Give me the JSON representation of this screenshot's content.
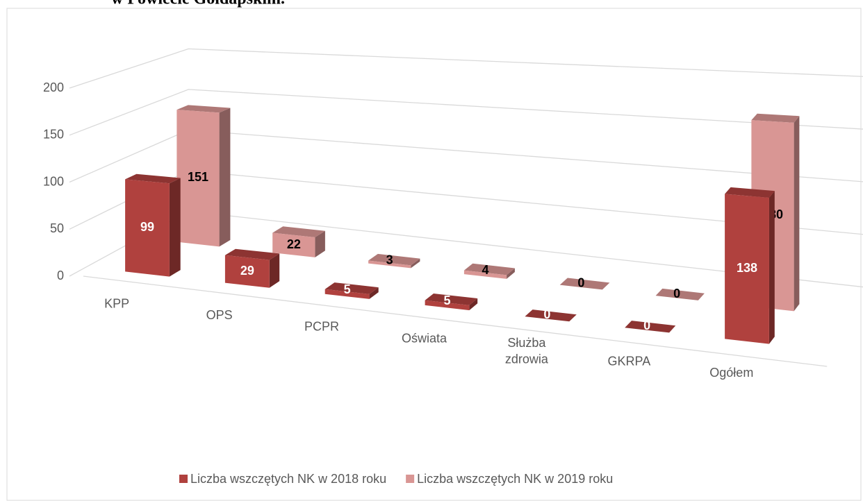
{
  "chart_data": {
    "type": "bar3d",
    "title": "w Powiecie Gołdapskim.",
    "categories": [
      "KPP",
      "OPS",
      "PCPR",
      "Oświata",
      "Służba zdrowia",
      "GKRPA",
      "Ogółem"
    ],
    "series": [
      {
        "name": "Liczba wszczętych NK w 2018 roku",
        "color": "#b0413e",
        "values": [
          99,
          29,
          5,
          5,
          0,
          0,
          138
        ]
      },
      {
        "name": "Liczba wszczętych NK w 2019 roku",
        "color": "#d99694",
        "values": [
          151,
          22,
          3,
          4,
          0,
          0,
          180
        ]
      }
    ],
    "ylim": [
      0,
      200
    ],
    "yticks": [
      0,
      50,
      100,
      150,
      200
    ],
    "grid": true,
    "legend": "bottom"
  }
}
